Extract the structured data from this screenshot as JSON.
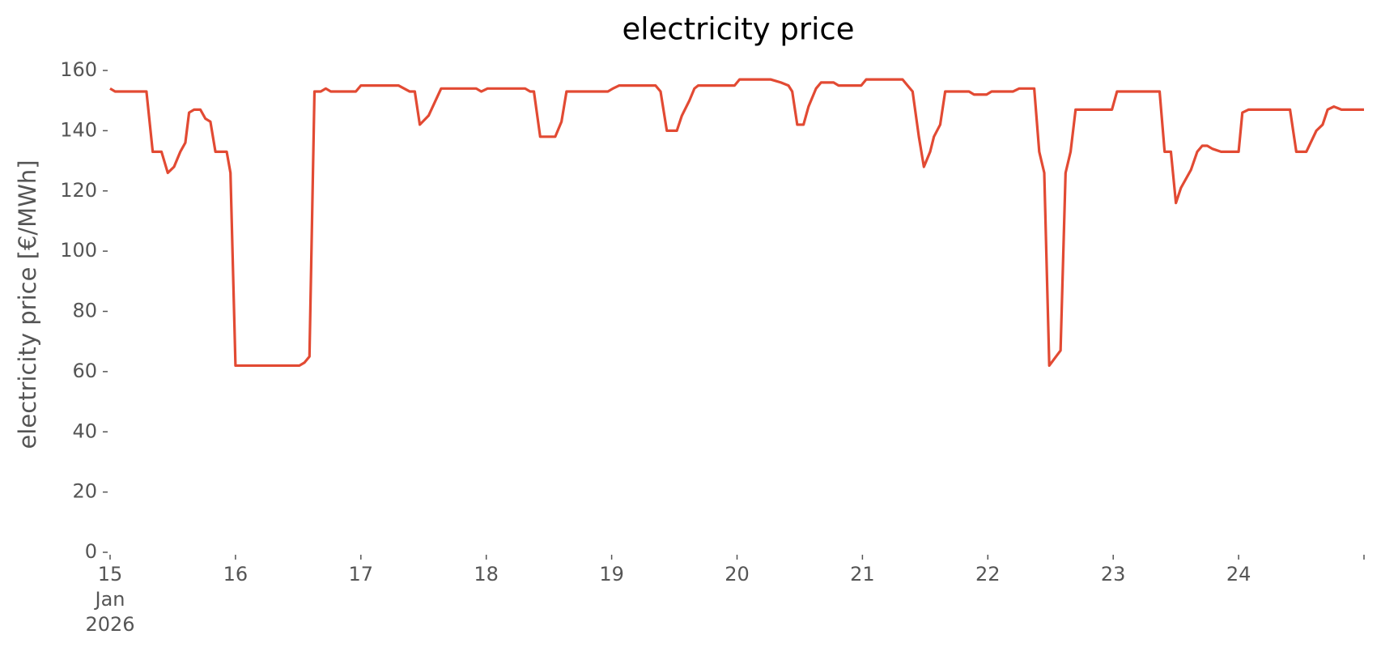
{
  "chart_data": {
    "type": "line",
    "title": "electricity price",
    "ylabel": "electricity price [€/MWh]",
    "x": [
      15.0,
      15.04,
      15.29,
      15.34,
      15.41,
      15.46,
      15.51,
      15.56,
      15.6,
      15.63,
      15.67,
      15.72,
      15.76,
      15.8,
      15.84,
      15.93,
      15.96,
      16.0,
      16.51,
      16.55,
      16.59,
      16.63,
      16.68,
      16.72,
      16.76,
      16.96,
      17.0,
      17.3,
      17.39,
      17.43,
      17.47,
      17.54,
      17.64,
      17.7,
      17.75,
      17.92,
      17.96,
      18.01,
      18.31,
      18.35,
      18.38,
      18.43,
      18.55,
      18.6,
      18.64,
      18.69,
      18.97,
      19.01,
      19.06,
      19.35,
      19.39,
      19.44,
      19.52,
      19.56,
      19.62,
      19.66,
      19.69,
      19.98,
      20.02,
      20.23,
      20.27,
      20.35,
      20.41,
      20.44,
      20.48,
      20.53,
      20.57,
      20.63,
      20.67,
      20.77,
      20.81,
      20.99,
      21.03,
      21.32,
      21.36,
      21.4,
      21.45,
      21.49,
      21.54,
      21.57,
      21.62,
      21.66,
      21.85,
      21.89,
      21.99,
      22.03,
      22.2,
      22.25,
      22.37,
      22.41,
      22.45,
      22.49,
      22.58,
      22.62,
      22.66,
      22.7,
      22.77,
      22.82,
      22.99,
      23.03,
      23.37,
      23.41,
      23.46,
      23.5,
      23.54,
      23.62,
      23.67,
      23.71,
      23.75,
      23.79,
      23.86,
      24.0,
      24.03,
      24.08,
      24.41,
      24.46,
      24.54,
      24.62,
      24.67,
      24.71,
      24.76,
      24.82,
      25.0
    ],
    "series": [
      {
        "name": "electricity price",
        "color": "#e24a33",
        "values": [
          154,
          153,
          153,
          133,
          133,
          126,
          128,
          133,
          136,
          146,
          147,
          147,
          144,
          143,
          133,
          133,
          126,
          62,
          62,
          63,
          65,
          153,
          153,
          154,
          153,
          153,
          155,
          155,
          153,
          153,
          142,
          145,
          154,
          154,
          154,
          154,
          153,
          154,
          154,
          153,
          153,
          138,
          138,
          143,
          153,
          153,
          153,
          154,
          155,
          155,
          153,
          140,
          140,
          145,
          150,
          154,
          155,
          155,
          157,
          157,
          157,
          156,
          155,
          153,
          142,
          142,
          148,
          154,
          156,
          156,
          155,
          155,
          157,
          157,
          155,
          153,
          138,
          128,
          133,
          138,
          142,
          153,
          153,
          152,
          152,
          153,
          153,
          154,
          154,
          133,
          126,
          62,
          67,
          126,
          133,
          147,
          147,
          147,
          147,
          153,
          153,
          133,
          133,
          116,
          121,
          127,
          133,
          135,
          135,
          134,
          133,
          133,
          146,
          147,
          147,
          133,
          133,
          140,
          142,
          147,
          148,
          147,
          147
        ]
      }
    ],
    "xlim": [
      15,
      25
    ],
    "xticks": [
      {
        "value": 15,
        "label": "15\nJan\n2026"
      },
      16,
      17,
      18,
      19,
      20,
      21,
      22,
      23,
      24
    ],
    "ylim": [
      0,
      160
    ],
    "yticks": [
      0,
      20,
      40,
      60,
      80,
      100,
      120,
      140,
      160
    ]
  }
}
